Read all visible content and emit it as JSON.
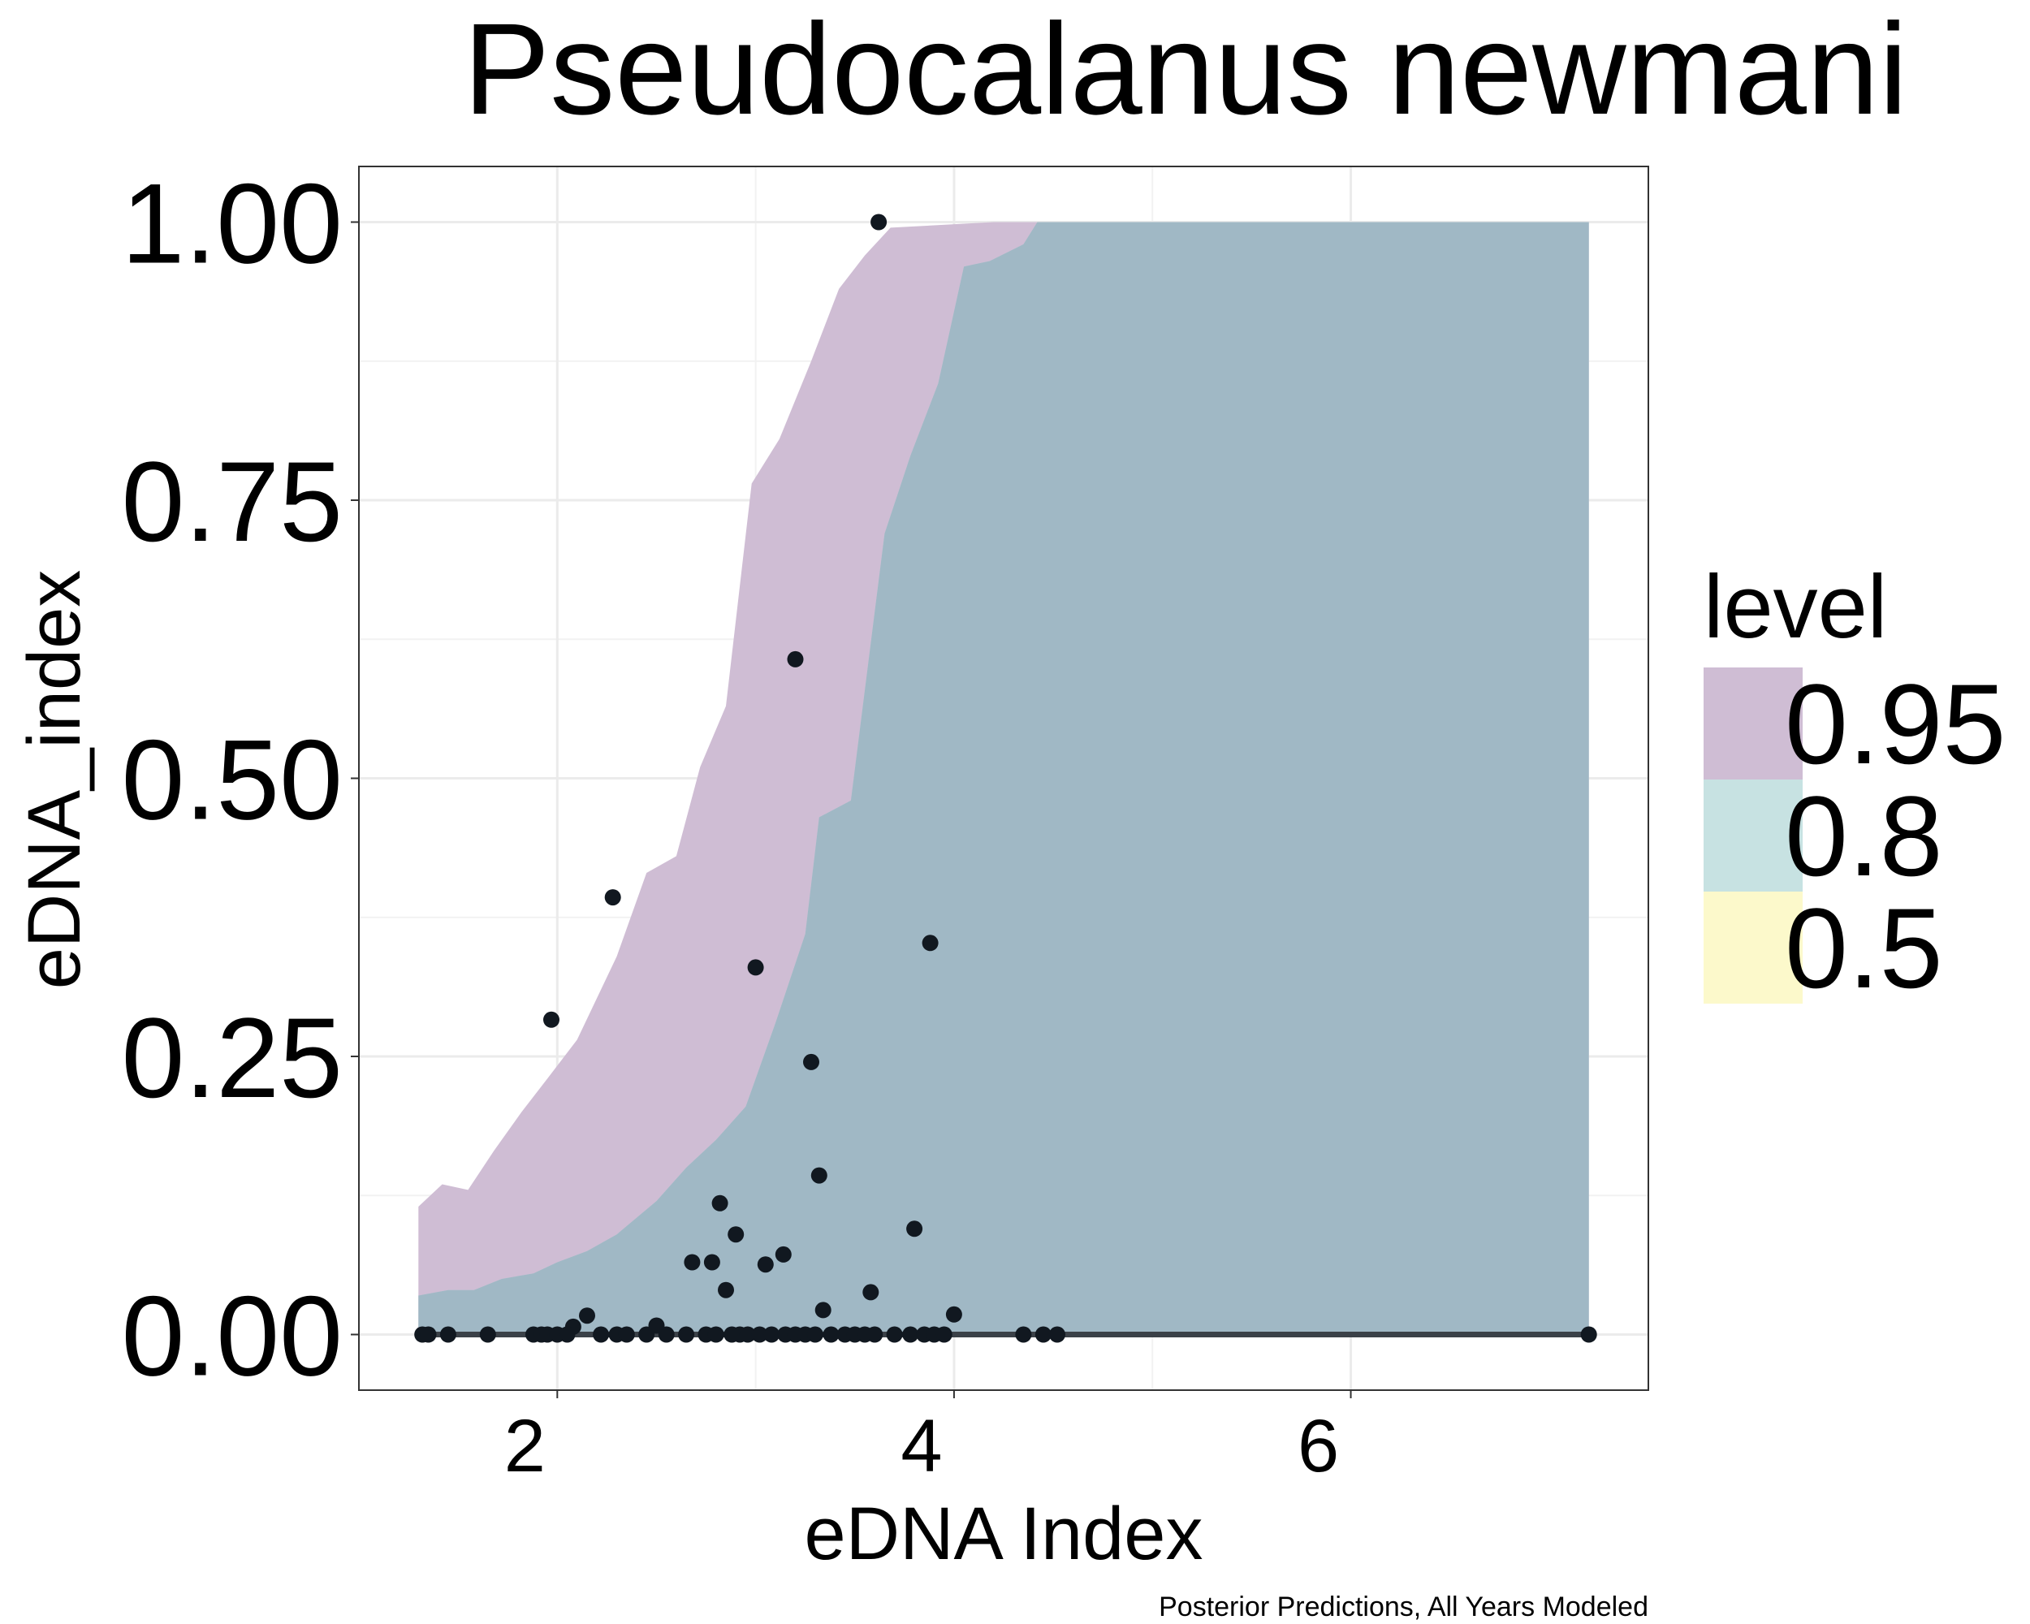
{
  "chart_data": {
    "type": "area",
    "title": "Pseudocalanus newmani",
    "xlabel": "eDNA Index",
    "ylabel": "eDNA_index",
    "caption": "Posterior Predictions, All Years Modeled",
    "xlim": [
      1.0,
      7.5
    ],
    "ylim": [
      -0.05,
      1.05
    ],
    "x_ticks": [
      2,
      4,
      6
    ],
    "x_tick_labels": [
      "2",
      "4",
      "6"
    ],
    "y_ticks": [
      0,
      0.25,
      0.5,
      0.75,
      1.0
    ],
    "y_tick_labels": [
      "0.00",
      "0.25",
      "0.50",
      "0.75",
      "1.00"
    ],
    "grid": true,
    "legend": {
      "title": "level",
      "position": "right",
      "entries": [
        {
          "label": "0.95",
          "color": "#CFBDD4"
        },
        {
          "label": "0.8",
          "color": "#C7E2E2"
        },
        {
          "label": "0.5",
          "color": "#FCF9CB"
        }
      ]
    },
    "bands": [
      {
        "level": "0.95",
        "color": "#CFBDD4",
        "x": [
          1.3,
          1.42,
          1.55,
          1.68,
          1.82,
          1.95,
          2.1,
          2.3,
          2.45,
          2.6,
          2.72,
          2.85,
          2.98,
          3.12,
          3.28,
          3.42,
          3.55,
          3.68,
          4.2,
          4.42,
          7.2
        ],
        "lower": [
          0.0,
          0.0,
          0.0,
          0.0,
          0.0,
          0.0,
          0.0,
          0.0,
          0.0,
          0.0,
          0.0,
          0.0,
          0.0,
          0.0,
          0.0,
          0.0,
          0.0,
          0.0,
          0.0,
          0.0,
          0.0
        ],
        "upper": [
          0.115,
          0.135,
          0.13,
          0.165,
          0.2,
          0.23,
          0.265,
          0.34,
          0.415,
          0.43,
          0.51,
          0.565,
          0.765,
          0.805,
          0.875,
          0.94,
          0.97,
          0.995,
          1.0,
          1.0,
          1.0
        ]
      },
      {
        "level": "0.8",
        "color": "#C7E2E2",
        "x": [
          1.3,
          1.45,
          1.58,
          1.72,
          1.88,
          2.0,
          2.15,
          2.3,
          2.5,
          2.65,
          2.8,
          2.95,
          3.1,
          3.25,
          3.32,
          3.48,
          3.65,
          3.78,
          3.92,
          4.05,
          4.18,
          4.35,
          4.42,
          7.2
        ],
        "lower": [
          0.0,
          0.0,
          0.0,
          0.0,
          0.0,
          0.0,
          0.0,
          0.0,
          0.0,
          0.0,
          0.0,
          0.0,
          0.0,
          0.0,
          0.0,
          0.0,
          0.0,
          0.0,
          0.0,
          0.0,
          0.0,
          0.0,
          0.0,
          0.0
        ],
        "upper": [
          0.035,
          0.04,
          0.04,
          0.05,
          0.055,
          0.065,
          0.075,
          0.09,
          0.12,
          0.15,
          0.175,
          0.205,
          0.28,
          0.36,
          0.465,
          0.48,
          0.72,
          0.79,
          0.855,
          0.96,
          0.965,
          0.98,
          1.0,
          1.0
        ]
      },
      {
        "level": "0.5",
        "color": "#FCF9CB",
        "x": [
          1.3,
          7.2
        ],
        "lower": [
          0.0,
          0.0
        ],
        "upper": [
          0.002,
          0.002
        ]
      }
    ],
    "median_line": {
      "x": [
        1.3,
        7.2
      ],
      "y": [
        0.0,
        0.0
      ]
    },
    "points": {
      "x": [
        3.62,
        3.2,
        2.28,
        3.0,
        3.88,
        1.97,
        3.28,
        3.32,
        2.82,
        3.8,
        2.9,
        3.14,
        2.68,
        2.78,
        3.05,
        2.85,
        3.58,
        3.34,
        4.0,
        2.15,
        2.08,
        2.5,
        1.32,
        1.35,
        1.45,
        1.65,
        1.88,
        1.92,
        1.95,
        2.0,
        2.05,
        2.22,
        2.3,
        2.35,
        2.45,
        2.55,
        2.65,
        2.75,
        2.8,
        2.88,
        2.92,
        2.96,
        3.02,
        3.08,
        3.15,
        3.2,
        3.25,
        3.3,
        3.38,
        3.45,
        3.5,
        3.55,
        3.6,
        3.7,
        3.78,
        3.85,
        3.9,
        3.95,
        4.35,
        4.45,
        4.52,
        7.2
      ],
      "y": [
        1.0,
        0.607,
        0.393,
        0.33,
        0.352,
        0.283,
        0.245,
        0.143,
        0.118,
        0.095,
        0.09,
        0.072,
        0.065,
        0.065,
        0.063,
        0.04,
        0.038,
        0.022,
        0.018,
        0.017,
        0.007,
        0.008,
        0,
        0,
        0,
        0,
        0,
        0,
        0,
        0,
        0,
        0,
        0,
        0,
        0,
        0,
        0,
        0,
        0,
        0,
        0,
        0,
        0,
        0,
        0,
        0,
        0,
        0,
        0,
        0,
        0,
        0,
        0,
        0,
        0,
        0,
        0,
        0,
        0,
        0,
        0,
        0
      ]
    },
    "overlay_color": "#7F95AD",
    "point_color": "#111820"
  }
}
